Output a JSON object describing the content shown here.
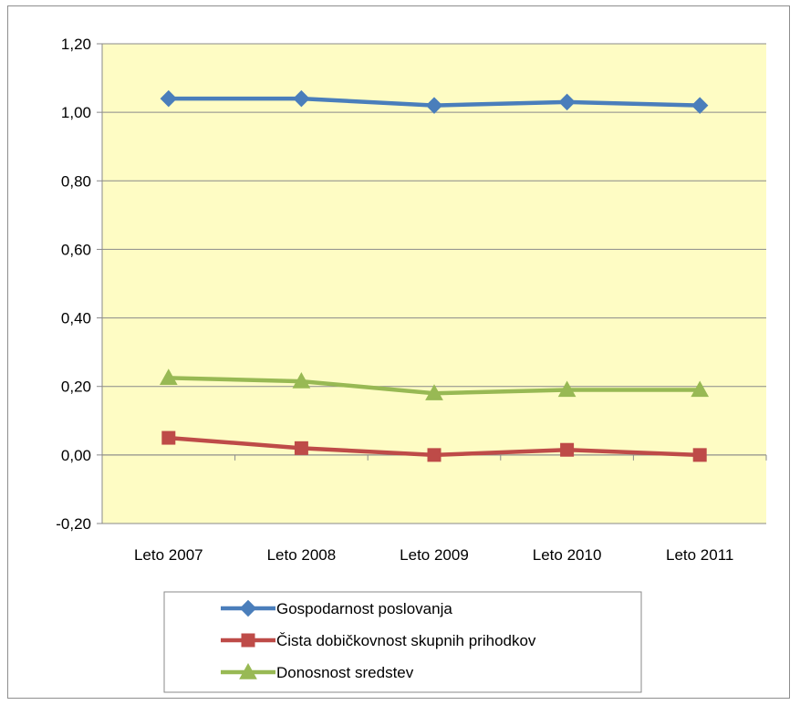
{
  "chart_data": {
    "type": "line",
    "categories": [
      "Leto 2007",
      "Leto 2008",
      "Leto 2009",
      "Leto 2010",
      "Leto 2011"
    ],
    "series": [
      {
        "name": "Gospodarnost poslovanja",
        "values": [
          1.04,
          1.04,
          1.02,
          1.03,
          1.02
        ],
        "color": "#4a7ebb",
        "marker": "diamond"
      },
      {
        "name": "Čista dobičkovnost skupnih prihodkov",
        "values": [
          0.05,
          0.02,
          0.0,
          0.015,
          0.0
        ],
        "color": "#be4b48",
        "marker": "square"
      },
      {
        "name": "Donosnost sredstev",
        "values": [
          0.225,
          0.215,
          0.18,
          0.19,
          0.19
        ],
        "color": "#98b954",
        "marker": "triangle"
      }
    ],
    "ylim": [
      -0.2,
      1.2
    ],
    "yticks": [
      -0.2,
      0.0,
      0.2,
      0.4,
      0.6,
      0.8,
      1.0,
      1.2
    ],
    "ytick_labels": [
      "-0,20",
      "0,00",
      "0,20",
      "0,40",
      "0,60",
      "0,80",
      "1,00",
      "1,20"
    ],
    "grid": true,
    "plot_background": "#fefcc4",
    "legend_position": "bottom",
    "title": "",
    "xlabel": "",
    "ylabel": ""
  }
}
